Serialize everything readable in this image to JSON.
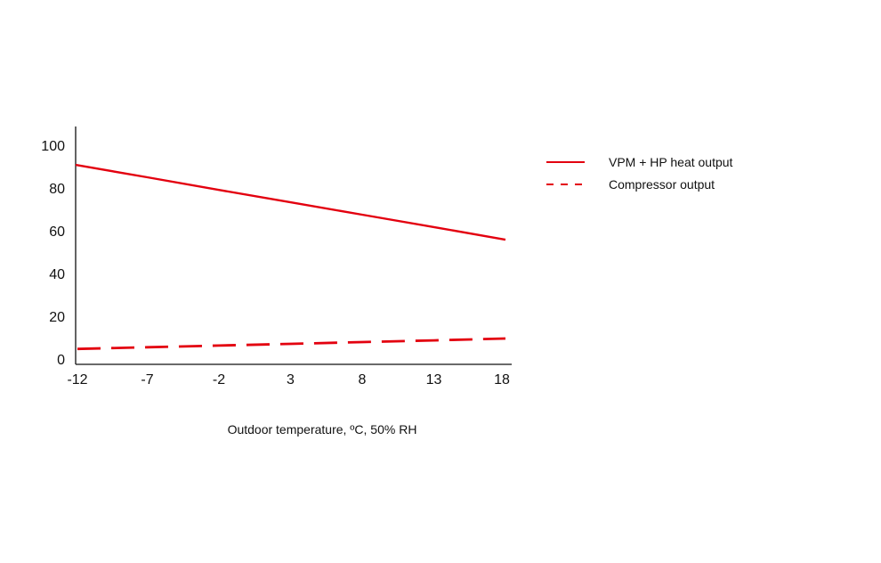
{
  "chart_data": {
    "type": "line",
    "title": "",
    "xlabel": "Outdoor temperature, ºC, 50% RH",
    "ylabel": "",
    "x": [
      -12,
      -7,
      -2,
      3,
      8,
      13,
      18
    ],
    "x_tick_labels": [
      "-12",
      "-7",
      "-2",
      "3",
      "8",
      "13",
      "18"
    ],
    "xlim": [
      -12,
      18
    ],
    "ylim": [
      0,
      110
    ],
    "y_ticks": [
      0,
      20,
      40,
      60,
      80,
      100
    ],
    "y_tick_labels": [
      "0",
      "20",
      "40",
      "60",
      "80",
      "100"
    ],
    "grid": false,
    "legend_position": "right",
    "series": [
      {
        "name": "VPM + HP heat output",
        "values": [
          90.8,
          85.0,
          79.1,
          73.3,
          67.5,
          61.7,
          55.8
        ],
        "color": "#e3000f",
        "style": "solid"
      },
      {
        "name": "Compressor output",
        "values": [
          4.7,
          5.5,
          6.3,
          7.1,
          7.9,
          8.7,
          9.6
        ],
        "color": "#e3000f",
        "style": "dashed"
      }
    ]
  }
}
